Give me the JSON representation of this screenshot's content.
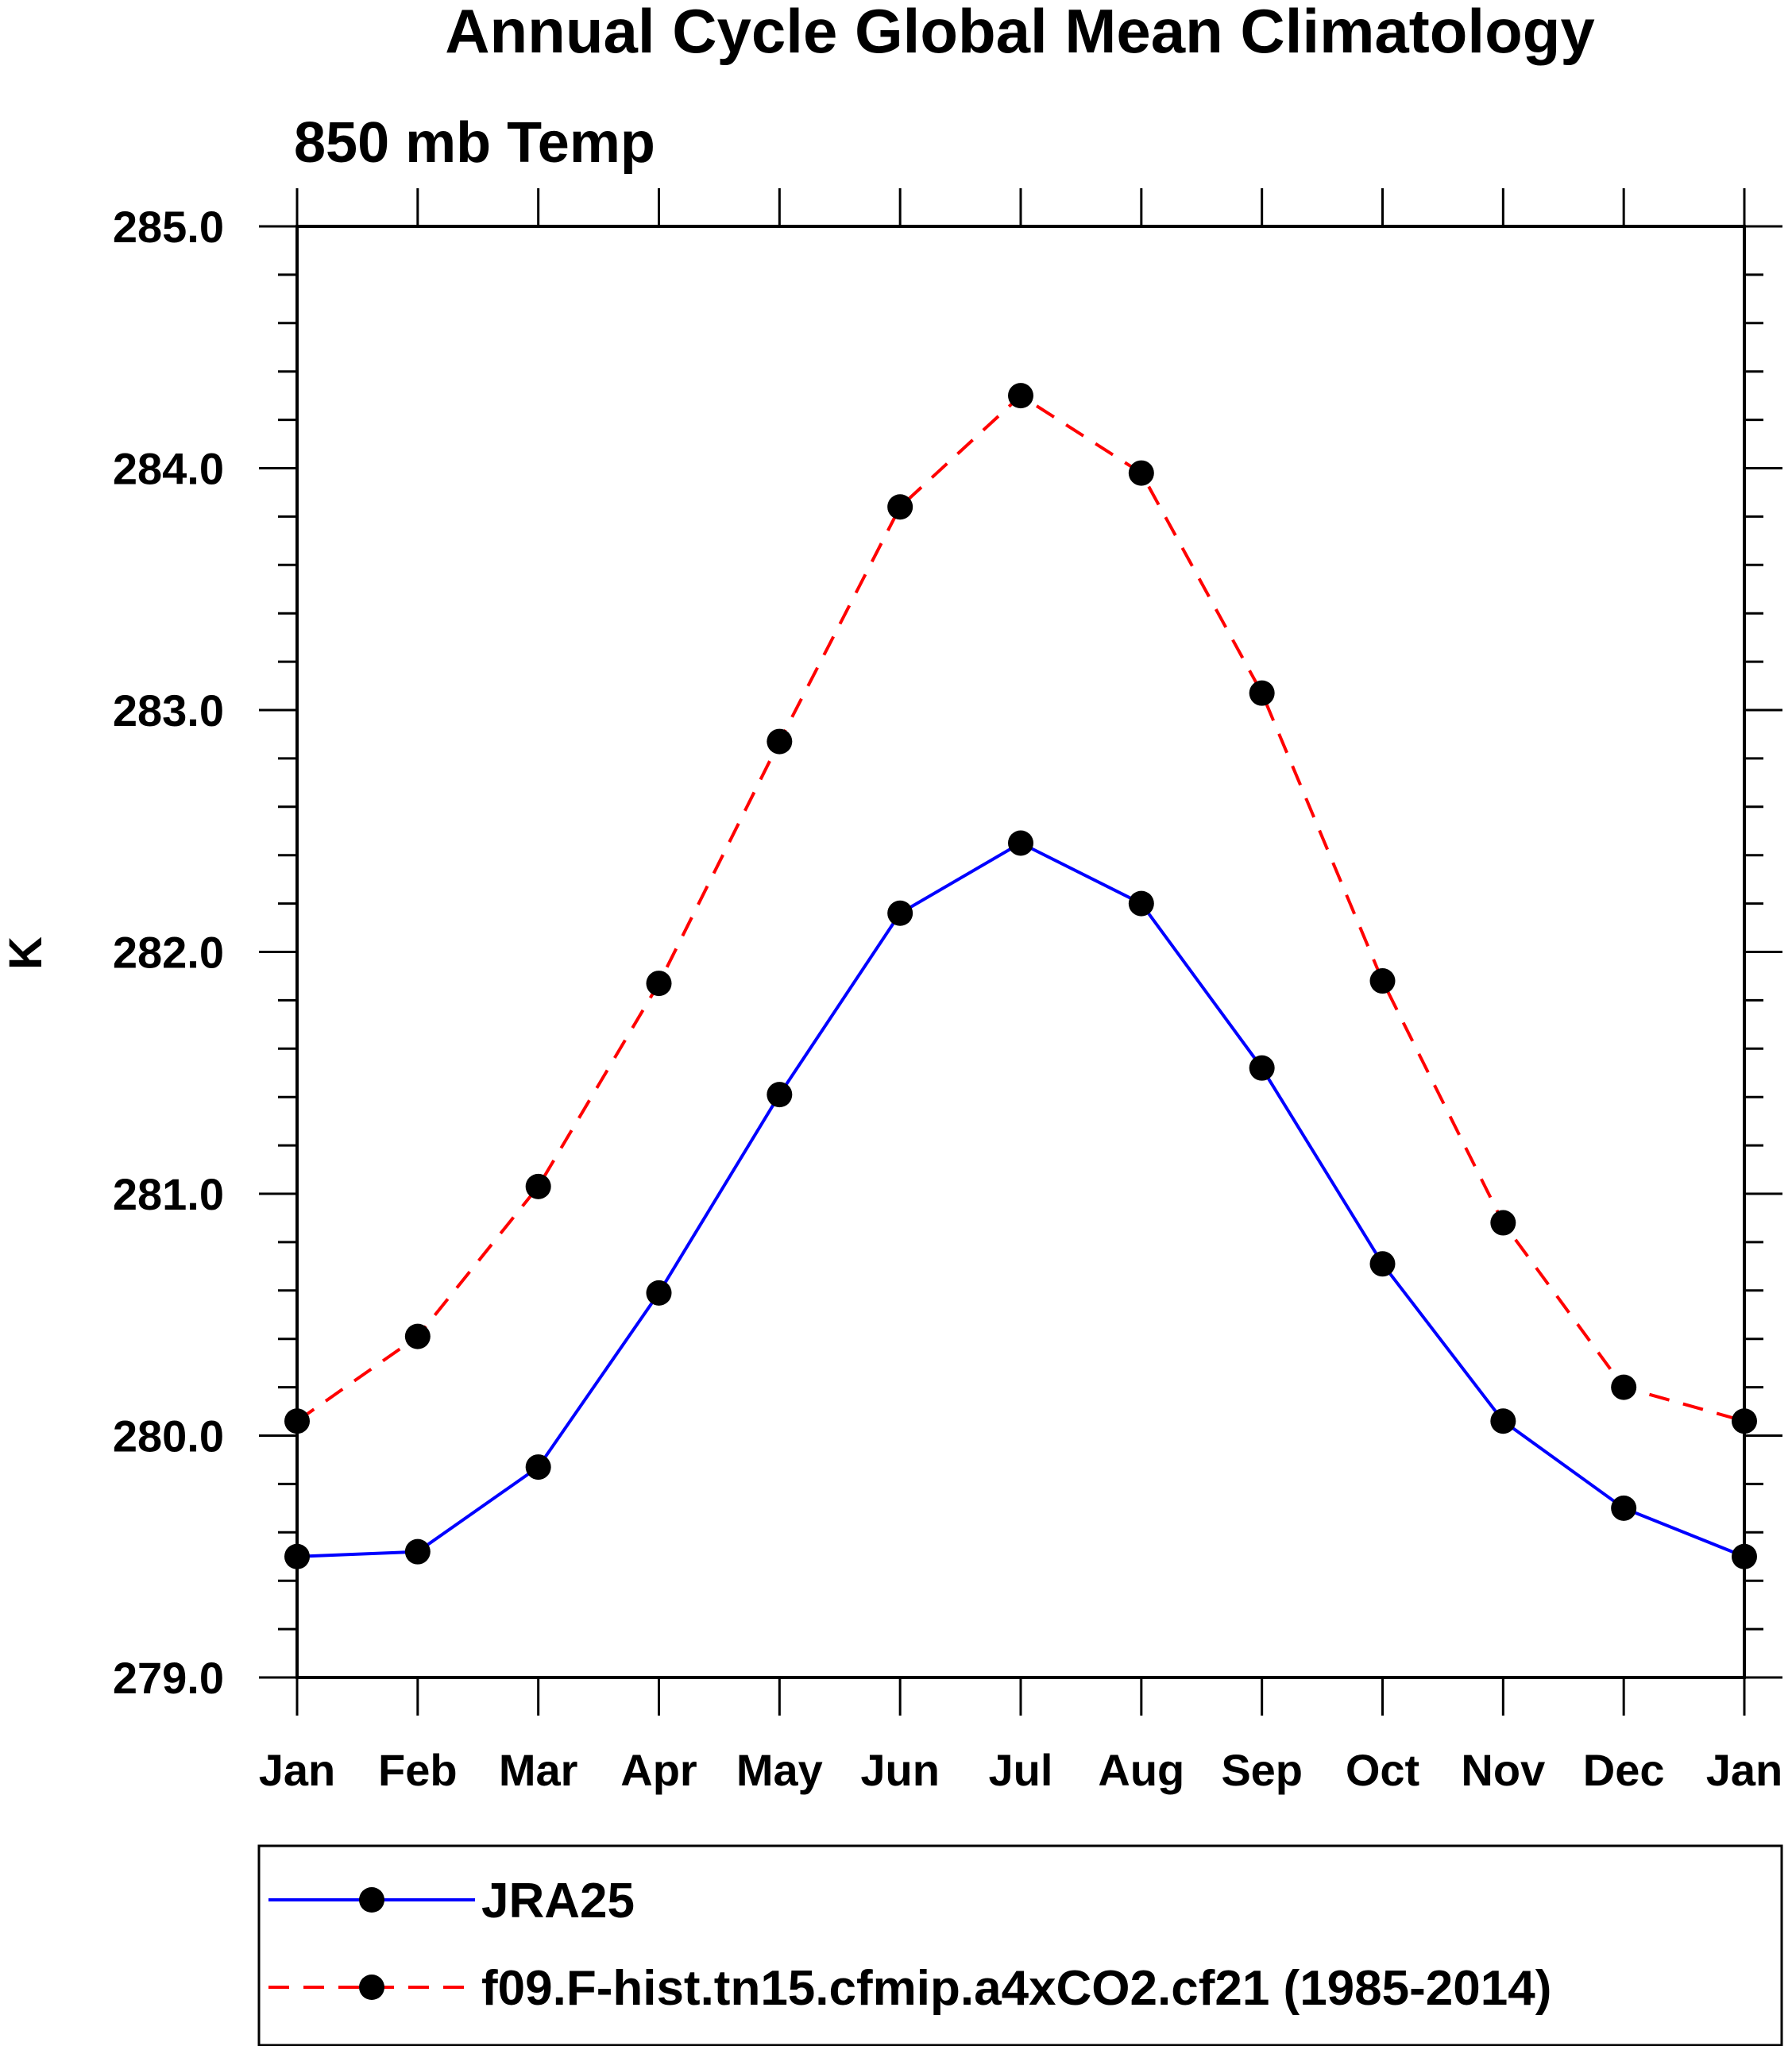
{
  "chart_data": {
    "type": "line",
    "title": "Annual Cycle Global Mean Climatology",
    "subtitle": "850 mb Temp",
    "xlabel": "",
    "ylabel": "K",
    "categories": [
      "Jan",
      "Feb",
      "Mar",
      "Apr",
      "May",
      "Jun",
      "Jul",
      "Aug",
      "Sep",
      "Oct",
      "Nov",
      "Dec",
      "Jan"
    ],
    "ylim": [
      279.0,
      285.0
    ],
    "yticks": [
      {
        "value": 279.0,
        "label": "279.0"
      },
      {
        "value": 280.0,
        "label": "280.0"
      },
      {
        "value": 281.0,
        "label": "281.0"
      },
      {
        "value": 282.0,
        "label": "282.0"
      },
      {
        "value": 283.0,
        "label": "283.0"
      },
      {
        "value": 284.0,
        "label": "284.0"
      },
      {
        "value": 285.0,
        "label": "285.0"
      }
    ],
    "yminor_step": 0.2,
    "grid": false,
    "legend_position": "bottom",
    "series": [
      {
        "name": "JRA25",
        "color": "#0000ff",
        "dash": "solid",
        "marker": "filled-circle",
        "values": [
          279.5,
          279.52,
          279.87,
          280.59,
          281.41,
          282.16,
          282.45,
          282.2,
          281.52,
          280.71,
          280.06,
          279.7,
          279.5
        ]
      },
      {
        "name": "f09.F-hist.tn15.cfmip.a4xCO2.cf21 (1985-2014)",
        "color": "#ff0000",
        "dash": "dashed",
        "marker": "filled-circle",
        "values": [
          280.06,
          280.41,
          281.03,
          281.87,
          282.87,
          283.84,
          284.3,
          283.98,
          283.07,
          281.88,
          280.88,
          280.2,
          280.06
        ]
      }
    ]
  }
}
